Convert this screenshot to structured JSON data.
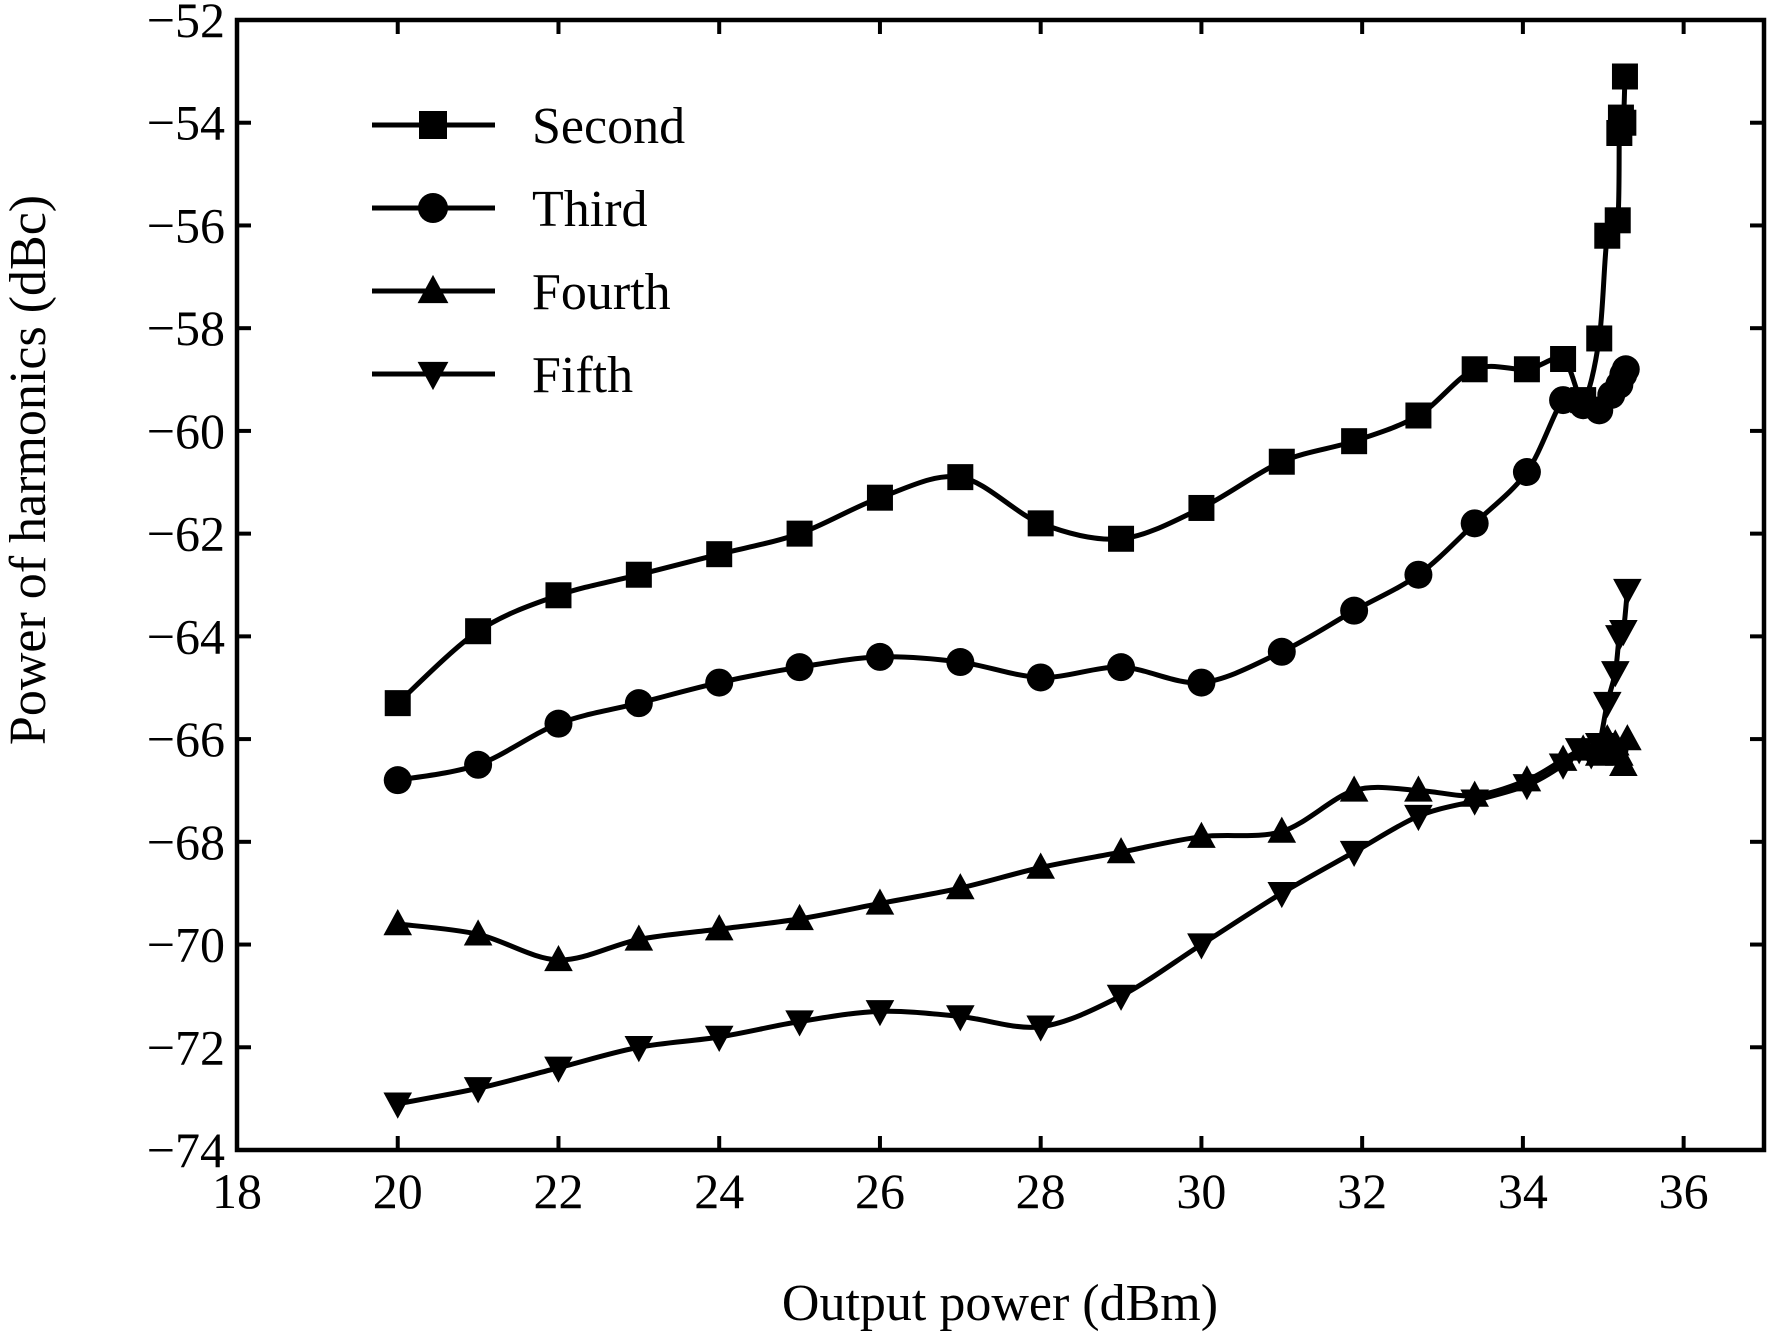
{
  "chart_data": {
    "type": "line",
    "title": "",
    "xlabel": "Output power (dBm)",
    "ylabel": "Power of harmonics (dBc)",
    "xlim": [
      18,
      37
    ],
    "ylim": [
      -74,
      -52
    ],
    "xticks": [
      18,
      20,
      22,
      24,
      26,
      28,
      30,
      32,
      34,
      36
    ],
    "yticks": [
      -74,
      -72,
      -70,
      -68,
      -66,
      -64,
      -62,
      -60,
      -58,
      -56,
      -54,
      -52
    ],
    "xtick_labels": [
      "18",
      "20",
      "22",
      "24",
      "26",
      "28",
      "30",
      "32",
      "34",
      "36"
    ],
    "ytick_labels": [
      "−74",
      "−72",
      "−70",
      "−68",
      "−66",
      "−64",
      "−62",
      "−60",
      "−58",
      "−56",
      "−54",
      "−52"
    ],
    "grid": false,
    "legend_position": "top-left",
    "series": [
      {
        "name": "Second",
        "marker": "square",
        "x": [
          20.0,
          21.0,
          22.0,
          23.0,
          24.0,
          25.0,
          26.0,
          27.0,
          28.0,
          29.0,
          30.0,
          31.0,
          31.9,
          32.7,
          33.4,
          34.05,
          34.5,
          34.75,
          34.95,
          35.05,
          35.18,
          35.2,
          35.22,
          35.25,
          35.27
        ],
        "y": [
          -65.3,
          -63.9,
          -63.2,
          -62.8,
          -62.4,
          -62.0,
          -61.3,
          -60.9,
          -61.8,
          -62.1,
          -61.5,
          -60.6,
          -60.2,
          -59.7,
          -58.8,
          -58.8,
          -58.6,
          -59.4,
          -58.2,
          -56.2,
          -55.9,
          -54.2,
          -53.9,
          -54.0,
          -53.1
        ]
      },
      {
        "name": "Third",
        "marker": "circle",
        "x": [
          20.0,
          21.0,
          22.0,
          23.0,
          24.0,
          25.0,
          26.0,
          27.0,
          28.0,
          29.0,
          30.0,
          31.0,
          31.9,
          32.7,
          33.4,
          34.05,
          34.5,
          34.75,
          34.95,
          35.1,
          35.2,
          35.25,
          35.28
        ],
        "y": [
          -66.8,
          -66.5,
          -65.7,
          -65.3,
          -64.9,
          -64.6,
          -64.4,
          -64.5,
          -64.8,
          -64.6,
          -64.9,
          -64.3,
          -63.5,
          -62.8,
          -61.8,
          -60.8,
          -59.4,
          -59.5,
          -59.6,
          -59.3,
          -59.1,
          -58.9,
          -58.8
        ]
      },
      {
        "name": "Fourth",
        "marker": "triangle-up",
        "x": [
          20.0,
          21.0,
          22.0,
          23.0,
          24.0,
          25.0,
          26.0,
          27.0,
          28.0,
          29.0,
          30.0,
          31.0,
          31.9,
          32.7,
          33.4,
          34.05,
          34.5,
          34.75,
          34.95,
          35.05,
          35.1,
          35.15,
          35.2,
          35.25,
          35.3
        ],
        "y": [
          -69.6,
          -69.8,
          -70.3,
          -69.9,
          -69.7,
          -69.5,
          -69.2,
          -68.9,
          -68.5,
          -68.2,
          -67.9,
          -67.8,
          -67.0,
          -67.0,
          -67.1,
          -66.8,
          -66.4,
          -66.2,
          -66.3,
          -66.0,
          -66.2,
          -66.1,
          -66.3,
          -66.5,
          -66.0
        ]
      },
      {
        "name": "Fifth",
        "marker": "triangle-down",
        "x": [
          20.0,
          21.0,
          22.0,
          23.0,
          24.0,
          25.0,
          26.0,
          27.0,
          28.0,
          29.0,
          30.0,
          31.0,
          31.9,
          32.7,
          33.4,
          34.05,
          34.5,
          34.7,
          34.85,
          34.95,
          35.05,
          35.15,
          35.2,
          35.25,
          35.3
        ],
        "y": [
          -73.1,
          -72.8,
          -72.4,
          -72.0,
          -71.8,
          -71.5,
          -71.3,
          -71.4,
          -71.6,
          -71.0,
          -70.0,
          -69.0,
          -68.2,
          -67.5,
          -67.2,
          -66.9,
          -66.5,
          -66.2,
          -66.3,
          -66.1,
          -65.3,
          -64.7,
          -64.0,
          -63.9,
          -63.1
        ]
      }
    ]
  }
}
